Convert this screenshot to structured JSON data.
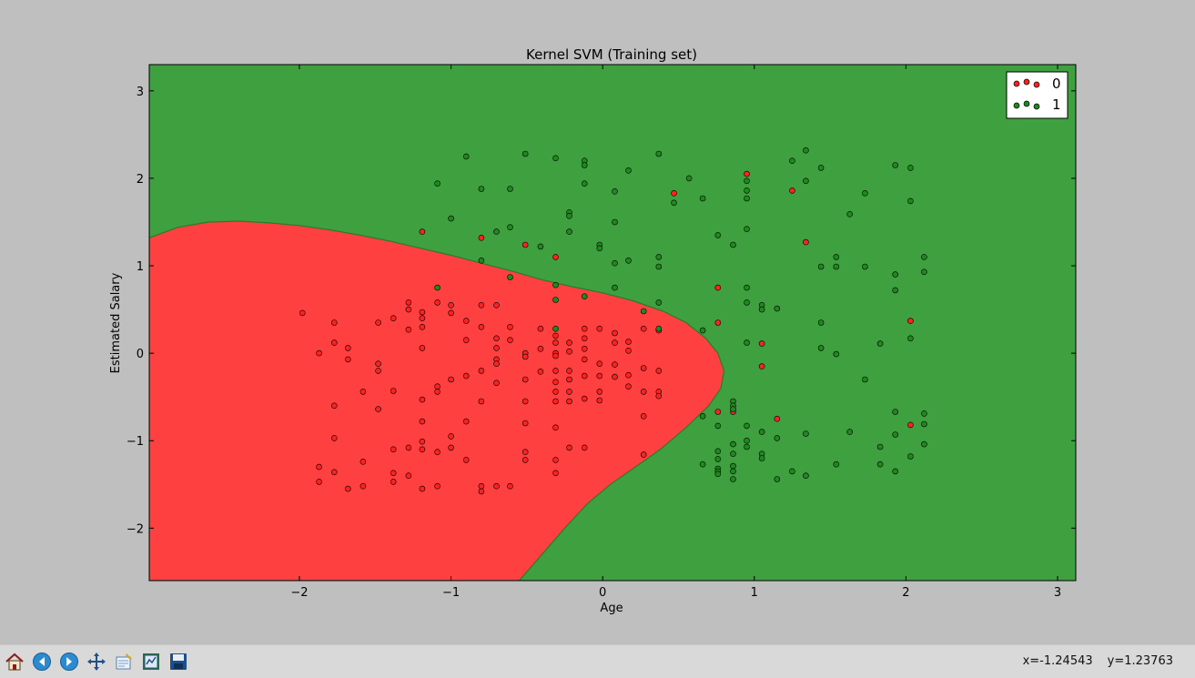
{
  "chart_data": {
    "type": "scatter",
    "title": "Kernel SVM (Training set)",
    "xlabel": "Age",
    "ylabel": "Estimated Salary",
    "xlim": [
      -2.99,
      3.12
    ],
    "ylim": [
      -2.6,
      3.3
    ],
    "xticks": [
      -2,
      -1,
      0,
      1,
      2,
      3
    ],
    "yticks": [
      -2,
      -1,
      0,
      1,
      2,
      3
    ],
    "xtick_labels": [
      "−2",
      "−1",
      "0",
      "1",
      "2",
      "3"
    ],
    "ytick_labels": [
      "−2",
      "−1",
      "0",
      "1",
      "2",
      "3"
    ],
    "grid": false,
    "legend_position": "top-right",
    "background_regions": [
      {
        "class": "1",
        "color": "#3fa03f"
      },
      {
        "class": "0",
        "color": "#ff4040"
      }
    ],
    "decision_boundary": [
      [
        -2.99,
        1.32
      ],
      [
        -2.8,
        1.44
      ],
      [
        -2.6,
        1.5
      ],
      [
        -2.4,
        1.51
      ],
      [
        -2.2,
        1.49
      ],
      [
        -2.0,
        1.46
      ],
      [
        -1.8,
        1.41
      ],
      [
        -1.6,
        1.35
      ],
      [
        -1.4,
        1.28
      ],
      [
        -1.2,
        1.2
      ],
      [
        -1.0,
        1.12
      ],
      [
        -0.8,
        1.03
      ],
      [
        -0.6,
        0.94
      ],
      [
        -0.4,
        0.84
      ],
      [
        -0.2,
        0.76
      ],
      [
        0.0,
        0.69
      ],
      [
        0.2,
        0.6
      ],
      [
        0.4,
        0.48
      ],
      [
        0.55,
        0.35
      ],
      [
        0.68,
        0.17
      ],
      [
        0.76,
        0.0
      ],
      [
        0.8,
        -0.2
      ],
      [
        0.78,
        -0.4
      ],
      [
        0.7,
        -0.6
      ],
      [
        0.55,
        -0.85
      ],
      [
        0.38,
        -1.1
      ],
      [
        0.2,
        -1.32
      ],
      [
        0.05,
        -1.5
      ],
      [
        -0.1,
        -1.72
      ],
      [
        -0.25,
        -2.0
      ],
      [
        -0.4,
        -2.3
      ],
      [
        -0.55,
        -2.6
      ],
      [
        -2.99,
        -2.6
      ]
    ],
    "series": [
      {
        "name": "0",
        "color": "#ff2020",
        "x": [
          -1.98,
          -1.87,
          -1.87,
          -1.87,
          -1.77,
          -1.77,
          -1.77,
          -1.77,
          -1.77,
          -1.68,
          -1.68,
          -1.68,
          -1.58,
          -1.58,
          -1.58,
          -1.48,
          -1.48,
          -1.48,
          -1.48,
          -1.38,
          -1.38,
          -1.38,
          -1.38,
          -1.38,
          -1.28,
          -1.28,
          -1.28,
          -1.28,
          -1.28,
          -1.19,
          -1.19,
          -1.19,
          -1.19,
          -1.19,
          -1.19,
          -1.19,
          -1.19,
          -1.19,
          -1.09,
          -1.09,
          -1.09,
          -1.09,
          -1.09,
          -1.0,
          -1.0,
          -1.0,
          -1.0,
          -1.0,
          -0.9,
          -0.9,
          -0.9,
          -0.9,
          -0.9,
          -0.8,
          -0.8,
          -0.8,
          -0.8,
          -0.8,
          -0.8,
          -0.7,
          -0.7,
          -0.7,
          -0.7,
          -0.7,
          -0.7,
          -0.7,
          -0.61,
          -0.61,
          -0.61,
          -0.51,
          -0.51,
          -0.51,
          -0.51,
          -0.51,
          -0.51,
          -0.51,
          -0.41,
          -0.41,
          -0.41,
          -0.31,
          -0.31,
          -0.31,
          -0.31,
          -0.31,
          -0.31,
          -0.31,
          -0.31,
          -0.31,
          -0.31,
          -0.31,
          -0.22,
          -0.22,
          -0.22,
          -0.22,
          -0.22,
          -0.22,
          -0.22,
          -0.12,
          -0.12,
          -0.12,
          -0.12,
          -0.12,
          -0.12,
          -0.12,
          -0.02,
          -0.02,
          -0.02,
          -0.02,
          -0.02,
          0.08,
          0.08,
          0.08,
          0.08,
          0.17,
          0.17,
          0.17,
          0.17,
          0.27,
          0.27,
          0.27,
          0.27,
          0.27,
          0.37,
          0.37,
          0.37,
          0.37,
          -1.19,
          -0.8,
          -0.51,
          -0.31,
          0.47,
          0.76,
          0.76,
          0.76,
          0.86,
          0.95,
          1.05,
          1.05,
          1.15,
          1.25,
          1.34,
          2.03,
          2.03
        ],
        "y": [
          0.46,
          0.0,
          -1.3,
          -1.47,
          0.35,
          0.12,
          -0.6,
          -0.97,
          -1.36,
          0.06,
          -0.07,
          -1.55,
          -0.44,
          -1.24,
          -1.52,
          0.35,
          -0.12,
          -0.2,
          -0.64,
          0.4,
          -0.43,
          -1.1,
          -1.37,
          -1.47,
          0.58,
          0.5,
          0.27,
          -1.08,
          -1.4,
          0.47,
          0.4,
          0.3,
          0.06,
          -0.53,
          -0.78,
          -1.01,
          -1.1,
          -1.55,
          -0.38,
          -0.44,
          -1.13,
          -1.52,
          0.58,
          0.55,
          0.46,
          -0.3,
          -0.95,
          -1.08,
          0.37,
          0.15,
          -0.26,
          -0.78,
          -1.22,
          0.55,
          0.3,
          -0.2,
          -0.55,
          -1.52,
          -1.58,
          0.55,
          0.17,
          0.06,
          -0.07,
          -0.12,
          -0.34,
          -1.52,
          0.3,
          0.15,
          -1.52,
          0.0,
          -0.3,
          -0.55,
          -0.8,
          -1.13,
          -1.22,
          -0.04,
          0.05,
          -0.21,
          0.28,
          0.2,
          0.12,
          0.0,
          -0.03,
          -0.2,
          -0.33,
          -0.44,
          -0.55,
          -0.85,
          -1.22,
          -1.37,
          0.12,
          0.02,
          -0.2,
          -0.3,
          -0.44,
          -0.55,
          -1.08,
          0.28,
          0.17,
          0.05,
          -0.07,
          -0.26,
          -0.52,
          -1.08,
          0.28,
          -0.12,
          -0.26,
          -0.44,
          -0.54,
          0.23,
          0.12,
          -0.13,
          -0.27,
          0.13,
          0.03,
          -0.25,
          -0.38,
          0.28,
          -0.17,
          -0.44,
          -0.72,
          -1.16,
          0.26,
          -0.2,
          -0.44,
          -0.49,
          1.39,
          1.32,
          1.24,
          1.1,
          1.83,
          0.75,
          0.35,
          -0.67,
          -0.67,
          2.05,
          0.11,
          -0.15,
          -0.75,
          1.86,
          1.27,
          0.37,
          -0.82
        ]
      },
      {
        "name": "1",
        "color": "#1e8a1e",
        "x": [
          -1.09,
          -1.09,
          -1.0,
          -0.9,
          -0.8,
          -0.8,
          -0.7,
          -0.61,
          -0.61,
          -0.61,
          -0.51,
          -0.41,
          -0.31,
          -0.31,
          -0.31,
          -0.31,
          -0.22,
          -0.22,
          -0.22,
          -0.12,
          -0.12,
          -0.12,
          -0.12,
          -0.02,
          -0.02,
          0.08,
          0.08,
          0.08,
          0.08,
          0.17,
          0.17,
          0.27,
          0.37,
          0.37,
          0.37,
          0.37,
          0.37,
          0.47,
          0.57,
          0.66,
          0.66,
          0.66,
          0.66,
          0.76,
          0.76,
          0.76,
          0.76,
          0.76,
          0.76,
          0.76,
          0.86,
          0.86,
          0.86,
          0.86,
          0.86,
          0.86,
          0.86,
          0.86,
          0.86,
          0.95,
          0.95,
          0.95,
          0.95,
          0.95,
          0.95,
          0.95,
          0.95,
          0.95,
          0.95,
          1.05,
          1.05,
          1.05,
          1.05,
          1.05,
          1.15,
          1.15,
          1.15,
          1.25,
          1.25,
          1.34,
          1.34,
          1.34,
          1.34,
          1.44,
          1.44,
          1.44,
          1.44,
          1.54,
          1.54,
          1.54,
          1.54,
          1.63,
          1.63,
          1.73,
          1.73,
          1.73,
          1.83,
          1.83,
          1.83,
          1.93,
          1.93,
          1.93,
          1.93,
          1.93,
          1.93,
          2.03,
          2.03,
          2.03,
          2.03,
          2.12,
          2.12,
          2.12,
          2.12,
          2.12
        ],
        "y": [
          1.94,
          0.75,
          1.54,
          2.25,
          1.88,
          1.06,
          1.39,
          1.88,
          1.44,
          0.87,
          2.28,
          1.22,
          2.23,
          0.78,
          0.61,
          0.28,
          1.61,
          1.57,
          1.39,
          2.2,
          2.15,
          1.94,
          0.65,
          1.24,
          1.2,
          1.85,
          1.5,
          1.03,
          0.75,
          2.09,
          1.06,
          0.48,
          2.28,
          1.1,
          0.99,
          0.58,
          0.28,
          1.72,
          2.0,
          1.77,
          0.26,
          -0.72,
          -1.27,
          1.35,
          -0.83,
          -1.12,
          -1.21,
          -1.32,
          -1.35,
          -1.38,
          1.24,
          -0.55,
          -0.6,
          -0.64,
          -1.04,
          -1.15,
          -1.29,
          -1.35,
          -1.44,
          1.97,
          1.86,
          1.77,
          1.42,
          0.75,
          0.58,
          0.12,
          -0.83,
          -1.0,
          -1.07,
          0.55,
          0.5,
          -0.9,
          -1.15,
          -1.2,
          0.51,
          -0.97,
          -1.44,
          2.2,
          -1.35,
          2.32,
          1.97,
          -0.92,
          -1.4,
          2.12,
          0.99,
          0.35,
          0.06,
          1.1,
          0.99,
          -0.01,
          -1.27,
          1.59,
          -0.9,
          1.83,
          0.99,
          -0.3,
          0.11,
          -1.07,
          -1.27,
          2.15,
          0.9,
          0.72,
          -0.67,
          -0.93,
          -1.35,
          2.12,
          1.74,
          0.17,
          -1.18,
          1.1,
          0.93,
          -0.69,
          -0.81,
          -1.04
        ]
      }
    ]
  },
  "toolbar": {
    "icons": [
      "home-icon",
      "back-arrow-icon",
      "forward-arrow-icon",
      "pan-move-icon",
      "zoom-rect-icon",
      "configure-subplots-icon",
      "save-disk-icon"
    ],
    "coords_x": "x=-1.24543",
    "coords_y": "y=1.23763"
  }
}
